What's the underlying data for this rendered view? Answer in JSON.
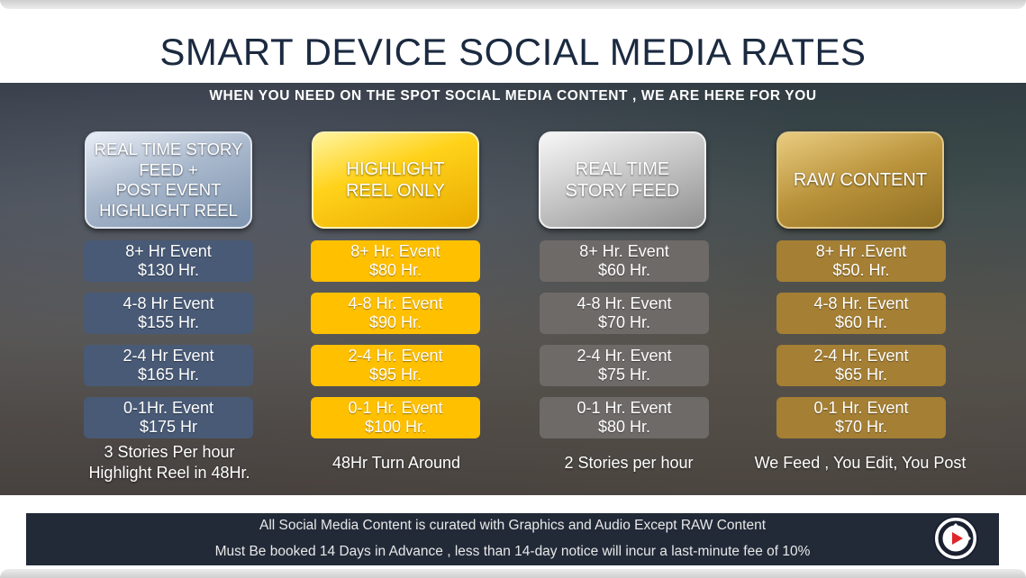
{
  "title": "SMART DEVICE SOCIAL MEDIA RATES",
  "subtitle": "WHEN YOU NEED ON THE SPOT SOCIAL MEDIA CONTENT , WE ARE HERE FOR YOU",
  "columns": [
    {
      "header": "REAL TIME STORY\nFEED +\nPOST EVENT\nHIGHLIGHT REEL",
      "color": "#485a76",
      "rates": [
        {
          "event": "8+ Hr Event",
          "price": "$130 Hr."
        },
        {
          "event": "4-8 Hr Event",
          "price": "$155 Hr."
        },
        {
          "event": "2-4 Hr Event",
          "price": "$165 Hr."
        },
        {
          "event": "0-1Hr. Event",
          "price": "$175 Hr"
        }
      ],
      "note": "3 Stories Per hour\nHighlight Reel in 48Hr."
    },
    {
      "header": "HIGHLIGHT\nREEL ONLY",
      "color": "#ffc000",
      "rates": [
        {
          "event": "8+ Hr. Event",
          "price": "$80 Hr."
        },
        {
          "event": "4-8 Hr. Event",
          "price": "$90 Hr."
        },
        {
          "event": "2-4 Hr. Event",
          "price": "$95 Hr."
        },
        {
          "event": "0-1 Hr. Event",
          "price": "$100 Hr."
        }
      ],
      "note": "48Hr Turn Around"
    },
    {
      "header": "REAL TIME\nSTORY FEED",
      "color": "#6e6a68",
      "rates": [
        {
          "event": "8+ Hr. Event",
          "price": "$60 Hr."
        },
        {
          "event": "4-8 Hr. Event",
          "price": "$70 Hr."
        },
        {
          "event": "2-4 Hr. Event",
          "price": "$75 Hr."
        },
        {
          "event": "0-1 Hr. Event",
          "price": "$80 Hr."
        }
      ],
      "note": "2 Stories per hour"
    },
    {
      "header": "RAW CONTENT",
      "color": "#a47f34",
      "rates": [
        {
          "event": "8+ Hr .Event",
          "price": "$50. Hr."
        },
        {
          "event": "4-8 Hr. Event",
          "price": "$60 Hr."
        },
        {
          "event": "2-4 Hr. Event",
          "price": "$65 Hr."
        },
        {
          "event": "0-1 Hr. Event",
          "price": "$70 Hr."
        }
      ],
      "note": "We Feed , You Edit, You Post"
    }
  ],
  "footer": {
    "line1": "All Social Media Content is curated with Graphics and Audio Except RAW Content",
    "line2": "Must Be booked 14 Days in Advance , less than 14-day notice  will incur a last-minute fee of 10%"
  },
  "logo_icon": "camera-play-logo-icon"
}
